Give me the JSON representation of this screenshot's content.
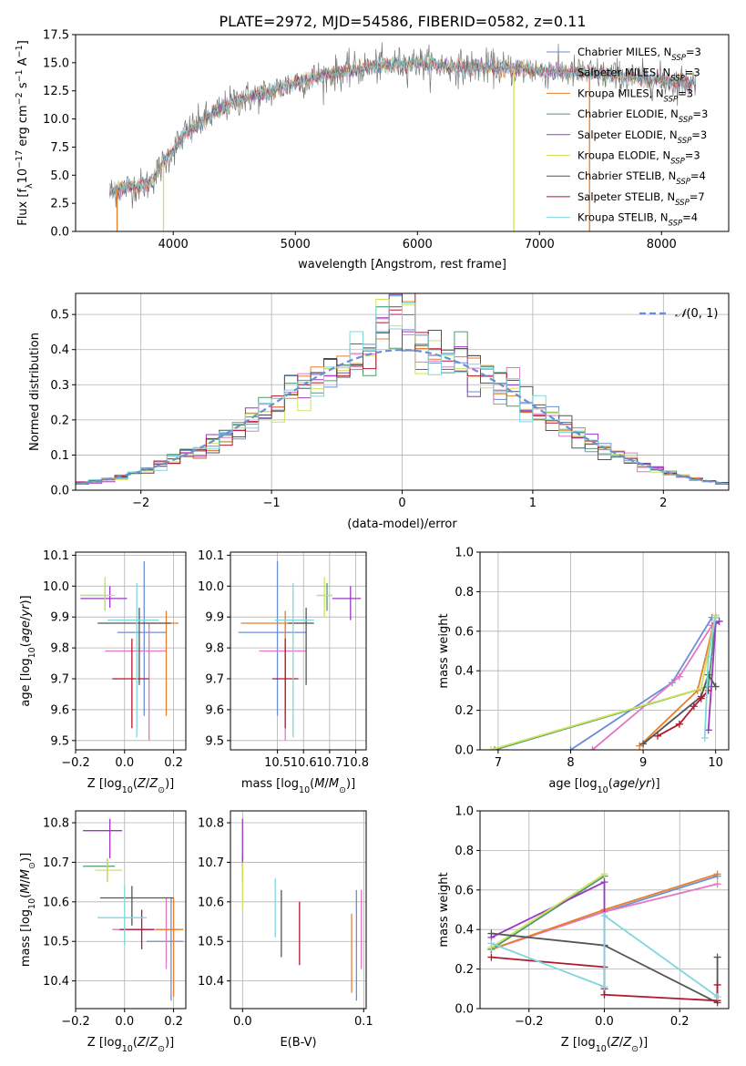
{
  "figure": {
    "title": "PLATE=2972, MJD=54586, FIBERID=0582, z=0.11"
  },
  "models": [
    {
      "name": "Chabrier MILES, N_SSP=3",
      "color": "#6a8fd6"
    },
    {
      "name": "Salpeter MILES, N_SSP=3",
      "color": "#e377c2"
    },
    {
      "name": "Kroupa MILES, N_SSP=3",
      "color": "#e87e2a"
    },
    {
      "name": "Chabrier ELODIE, N_SSP=3",
      "color": "#4e9a6f"
    },
    {
      "name": "Salpeter ELODIE, N_SSP=3",
      "color": "#9b37c4"
    },
    {
      "name": "Kroupa ELODIE, N_SSP=3",
      "color": "#cfe35a"
    },
    {
      "name": "Chabrier STELIB, N_SSP=4",
      "color": "#555555"
    },
    {
      "name": "Salpeter STELIB, N_SSP=7",
      "color": "#b2182b"
    },
    {
      "name": "Kroupa STELIB, N_SSP=4",
      "color": "#7fd7dd"
    }
  ],
  "chart_data": [
    {
      "id": "spectrum",
      "type": "line",
      "xlabel": "wavelength [Angstrom, rest frame]",
      "ylabel": "Flux [f_λ 10^-17 erg cm^-2 s^-1 A^-1]",
      "xlim": [
        3200,
        8550
      ],
      "ylim": [
        0,
        17.5
      ],
      "xticks": [
        4000,
        5000,
        6000,
        7000,
        8000
      ],
      "yticks": [
        0.0,
        2.5,
        5.0,
        7.5,
        10.0,
        12.5,
        15.0,
        17.5
      ],
      "grid": false,
      "legend": "upper right",
      "continuum_knots": {
        "wavelength": [
          3480,
          3600,
          3800,
          3950,
          4100,
          4300,
          4500,
          4800,
          5000,
          5300,
          5600,
          6000,
          6300,
          6600,
          7000,
          7500,
          8000,
          8280
        ],
        "flux": [
          3.5,
          3.9,
          4.2,
          6.5,
          8.8,
          10.2,
          11.6,
          12.4,
          13.3,
          14.0,
          14.6,
          15.0,
          14.6,
          14.6,
          14.3,
          14.0,
          13.4,
          13.2
        ]
      },
      "spikes_down": [
        {
          "wavelength": 3540,
          "color": "#e87e2a"
        },
        {
          "wavelength": 3920,
          "color": "#cfe35a"
        },
        {
          "wavelength": 6790,
          "color": "#cfe35a"
        },
        {
          "wavelength": 7410,
          "color": "#e87e2a"
        }
      ]
    },
    {
      "id": "residuals",
      "type": "histogram",
      "xlabel": "(data-model)/error",
      "ylabel": "Normed distribution",
      "xlim": [
        -2.5,
        2.5
      ],
      "ylim": [
        0,
        0.56
      ],
      "xticks": [
        -2,
        -1,
        0,
        1,
        2
      ],
      "yticks": [
        0.0,
        0.1,
        0.2,
        0.3,
        0.4,
        0.5
      ],
      "grid": true,
      "legend": "upper right",
      "reference_curve": "N(0,1)",
      "bin_width": 0.1
    },
    {
      "id": "age-vs-Z",
      "type": "scatter",
      "xlabel": "Z [log10(Z/Z_sun)]",
      "ylabel": "age [log10(age/yr)]",
      "xlim": [
        -0.2,
        0.25
      ],
      "ylim": [
        9.47,
        10.11
      ],
      "xticks": [
        -0.2,
        0.0,
        0.2
      ],
      "yticks": [
        9.5,
        9.6,
        9.7,
        9.8,
        9.9,
        10.0,
        10.1
      ],
      "grid": true,
      "points": [
        {
          "model": 0,
          "x": 0.08,
          "y": 9.85,
          "xerr": [
            0.11,
            0.09
          ],
          "yerr": [
            0.27,
            0.23
          ]
        },
        {
          "model": 1,
          "x": 0.1,
          "y": 9.79,
          "xerr": [
            0.18,
            0.07
          ],
          "yerr": [
            0.29,
            0.09
          ]
        },
        {
          "model": 2,
          "x": 0.17,
          "y": 9.88,
          "xerr": [
            0.1,
            0.05
          ],
          "yerr": [
            0.3,
            0.04
          ]
        },
        {
          "model": 3,
          "x": -0.08,
          "y": 9.97,
          "xerr": [
            0.1,
            0.03
          ],
          "yerr": [
            0.05,
            0.04
          ]
        },
        {
          "model": 4,
          "x": -0.06,
          "y": 9.96,
          "xerr": [
            0.12,
            0.07
          ],
          "yerr": [
            0.03,
            0.04
          ]
        },
        {
          "model": 5,
          "x": -0.08,
          "y": 9.97,
          "xerr": [
            0.1,
            0.04
          ],
          "yerr": [
            0.05,
            0.06
          ]
        },
        {
          "model": 6,
          "x": 0.06,
          "y": 9.88,
          "xerr": [
            0.17,
            0.13
          ],
          "yerr": [
            0.2,
            0.05
          ]
        },
        {
          "model": 7,
          "x": 0.03,
          "y": 9.7,
          "xerr": [
            0.08,
            0.07
          ],
          "yerr": [
            0.16,
            0.13
          ]
        },
        {
          "model": 8,
          "x": 0.05,
          "y": 9.89,
          "xerr": [
            0.12,
            0.09
          ],
          "yerr": [
            0.38,
            0.12
          ]
        }
      ]
    },
    {
      "id": "age-vs-mass",
      "type": "scatter",
      "xlabel": "mass [log10(M/M_sun)]",
      "ylabel": "",
      "xlim": [
        10.32,
        10.84
      ],
      "ylim": [
        9.47,
        10.11
      ],
      "xticks": [
        10.5,
        10.6,
        10.7,
        10.8
      ],
      "yticks": [
        9.5,
        9.6,
        9.7,
        9.8,
        9.9,
        10.0,
        10.1
      ],
      "grid": true,
      "points": [
        {
          "model": 0,
          "x": 10.5,
          "y": 9.85,
          "xerr": [
            0.15,
            0.11
          ],
          "yerr": [
            0.27,
            0.23
          ]
        },
        {
          "model": 1,
          "x": 10.53,
          "y": 9.79,
          "xerr": [
            0.1,
            0.08
          ],
          "yerr": [
            0.29,
            0.09
          ]
        },
        {
          "model": 2,
          "x": 10.53,
          "y": 9.88,
          "xerr": [
            0.17,
            0.08
          ],
          "yerr": [
            0.3,
            0.04
          ]
        },
        {
          "model": 3,
          "x": 10.69,
          "y": 9.97,
          "xerr": [
            0.04,
            0.02
          ],
          "yerr": [
            0.05,
            0.04
          ]
        },
        {
          "model": 4,
          "x": 10.78,
          "y": 9.96,
          "xerr": [
            0.07,
            0.04
          ],
          "yerr": [
            0.07,
            0.04
          ]
        },
        {
          "model": 5,
          "x": 10.68,
          "y": 9.97,
          "xerr": [
            0.03,
            0.03
          ],
          "yerr": [
            0.07,
            0.06
          ]
        },
        {
          "model": 6,
          "x": 10.61,
          "y": 9.88,
          "xerr": [
            0.07,
            0.03
          ],
          "yerr": [
            0.2,
            0.05
          ]
        },
        {
          "model": 7,
          "x": 10.53,
          "y": 9.7,
          "xerr": [
            0.05,
            0.05
          ],
          "yerr": [
            0.16,
            0.13
          ]
        },
        {
          "model": 8,
          "x": 10.56,
          "y": 9.89,
          "xerr": [
            0.07,
            0.08
          ],
          "yerr": [
            0.38,
            0.12
          ]
        }
      ]
    },
    {
      "id": "weight-vs-age",
      "type": "line",
      "xlabel": "age [log10(age/yr)]",
      "ylabel": "mass weight",
      "xlim": [
        6.75,
        10.18
      ],
      "ylim": [
        0,
        1.0
      ],
      "xticks": [
        7,
        8,
        9,
        10
      ],
      "yticks": [
        0.0,
        0.2,
        0.4,
        0.6,
        0.8,
        1.0
      ],
      "grid": true,
      "series": [
        {
          "model": 0,
          "x": [
            8.0,
            9.4,
            9.95
          ],
          "y": [
            0.0,
            0.34,
            0.67
          ]
        },
        {
          "model": 1,
          "x": [
            8.3,
            9.5,
            9.95
          ],
          "y": [
            0.0,
            0.37,
            0.63
          ]
        },
        {
          "model": 2,
          "x": [
            8.95,
            9.75,
            10.0
          ],
          "y": [
            0.02,
            0.3,
            0.68
          ]
        },
        {
          "model": 3,
          "x": [
            6.95,
            9.9,
            10.0
          ],
          "y": [
            0.0,
            0.32,
            0.67
          ]
        },
        {
          "model": 4,
          "x": [
            9.9,
            10.0,
            10.05
          ],
          "y": [
            0.1,
            0.64,
            0.65
          ]
        },
        {
          "model": 5,
          "x": [
            6.9,
            9.8,
            10.0
          ],
          "y": [
            0.0,
            0.31,
            0.68
          ]
        },
        {
          "model": 6,
          "x": [
            9.0,
            9.8,
            9.9,
            10.0
          ],
          "y": [
            0.03,
            0.27,
            0.38,
            0.32
          ]
        },
        {
          "model": 7,
          "x": [
            9.2,
            9.5,
            9.7,
            9.8,
            9.9
          ],
          "y": [
            0.07,
            0.13,
            0.22,
            0.26,
            0.3
          ]
        },
        {
          "model": 8,
          "x": [
            9.85,
            9.9,
            10.0
          ],
          "y": [
            0.06,
            0.47,
            0.67
          ]
        }
      ]
    },
    {
      "id": "mass-vs-Z",
      "type": "scatter",
      "xlabel": "Z [log10(Z/Z_sun)]",
      "ylabel": "mass [log10(M/M_sun)]",
      "xlim": [
        -0.2,
        0.25
      ],
      "ylim": [
        10.33,
        10.83
      ],
      "xticks": [
        -0.2,
        0.0,
        0.2
      ],
      "yticks": [
        10.4,
        10.5,
        10.6,
        10.7,
        10.8
      ],
      "grid": true,
      "points": [
        {
          "model": 0,
          "x": 0.19,
          "y": 10.5,
          "xerr": [
            0.1,
            0.05
          ],
          "yerr": [
            0.15,
            0.11
          ]
        },
        {
          "model": 1,
          "x": 0.17,
          "y": 10.53,
          "xerr": [
            0.22,
            0.05
          ],
          "yerr": [
            0.1,
            0.08
          ]
        },
        {
          "model": 2,
          "x": 0.2,
          "y": 10.53,
          "xerr": [
            0.07,
            0.04
          ],
          "yerr": [
            0.17,
            0.08
          ]
        },
        {
          "model": 3,
          "x": -0.07,
          "y": 10.69,
          "xerr": [
            0.1,
            0.03
          ],
          "yerr": [
            0.04,
            0.02
          ]
        },
        {
          "model": 4,
          "x": -0.06,
          "y": 10.78,
          "xerr": [
            0.11,
            0.05
          ],
          "yerr": [
            0.07,
            0.03
          ]
        },
        {
          "model": 5,
          "x": -0.07,
          "y": 10.68,
          "xerr": [
            0.05,
            0.06
          ],
          "yerr": [
            0.03,
            0.03
          ]
        },
        {
          "model": 6,
          "x": 0.03,
          "y": 10.61,
          "xerr": [
            0.13,
            0.17
          ],
          "yerr": [
            0.07,
            0.03
          ]
        },
        {
          "model": 7,
          "x": 0.07,
          "y": 10.53,
          "xerr": [
            0.09,
            0.05
          ],
          "yerr": [
            0.05,
            0.05
          ]
        },
        {
          "model": 8,
          "x": 0.0,
          "y": 10.56,
          "xerr": [
            0.11,
            0.09
          ],
          "yerr": [
            0.07,
            0.08
          ]
        }
      ]
    },
    {
      "id": "mass-vs-EBV",
      "type": "scatter",
      "xlabel": "E(B-V)",
      "ylabel": "",
      "xlim": [
        -0.01,
        0.102
      ],
      "ylim": [
        10.33,
        10.83
      ],
      "xticks": [
        0.0,
        0.1
      ],
      "yticks": [
        10.4,
        10.5,
        10.6,
        10.7,
        10.8
      ],
      "grid": true,
      "points": [
        {
          "model": 0,
          "x": 0.094,
          "y": 10.5,
          "xerr": [
            0,
            0
          ],
          "yerr": [
            0.15,
            0.13
          ]
        },
        {
          "model": 1,
          "x": 0.098,
          "y": 10.53,
          "xerr": [
            0,
            0
          ],
          "yerr": [
            0.1,
            0.1
          ]
        },
        {
          "model": 2,
          "x": 0.09,
          "y": 10.47,
          "xerr": [
            0,
            0
          ],
          "yerr": [
            0.1,
            0.1
          ]
        },
        {
          "model": 3,
          "x": 0.0,
          "y": 10.69,
          "xerr": [
            0,
            0
          ],
          "yerr": [
            0.04,
            0.03
          ]
        },
        {
          "model": 4,
          "x": 0.0,
          "y": 10.75,
          "xerr": [
            0,
            0
          ],
          "yerr": [
            0.06,
            0.06
          ]
        },
        {
          "model": 5,
          "x": 0.0,
          "y": 10.64,
          "xerr": [
            0,
            0
          ],
          "yerr": [
            0.06,
            0.06
          ]
        },
        {
          "model": 6,
          "x": 0.032,
          "y": 10.57,
          "xerr": [
            0,
            0
          ],
          "yerr": [
            0.11,
            0.06
          ]
        },
        {
          "model": 7,
          "x": 0.047,
          "y": 10.53,
          "xerr": [
            0,
            0
          ],
          "yerr": [
            0.09,
            0.07
          ]
        },
        {
          "model": 8,
          "x": 0.027,
          "y": 10.58,
          "xerr": [
            0,
            0
          ],
          "yerr": [
            0.07,
            0.08
          ]
        }
      ]
    },
    {
      "id": "weight-vs-Z",
      "type": "line",
      "xlabel": "Z [log10(Z/Z_sun)]",
      "ylabel": "mass weight",
      "xlim": [
        -0.33,
        0.33
      ],
      "ylim": [
        0,
        1.0
      ],
      "xticks": [
        -0.2,
        0.0,
        0.2
      ],
      "yticks": [
        0.0,
        0.2,
        0.4,
        0.6,
        0.8,
        1.0
      ],
      "grid": true,
      "series": [
        {
          "model": 0,
          "x": [
            -0.3,
            0.0,
            0.3
          ],
          "y": [
            0.3,
            0.49,
            0.67
          ]
        },
        {
          "model": 1,
          "x": [
            -0.3,
            0.0,
            0.3
          ],
          "y": [
            0.3,
            0.49,
            0.63
          ]
        },
        {
          "model": 2,
          "x": [
            -0.3,
            0.0,
            0.3
          ],
          "y": [
            0.3,
            0.5,
            0.68
          ]
        },
        {
          "model": 3,
          "x": [
            -0.3,
            0.0
          ],
          "y": [
            0.3,
            0.67
          ]
        },
        {
          "model": 4,
          "x": [
            -0.3,
            0.0,
            0.0
          ],
          "y": [
            0.36,
            0.64,
            0.1
          ]
        },
        {
          "model": 5,
          "x": [
            -0.3,
            0.0
          ],
          "y": [
            0.31,
            0.68
          ]
        },
        {
          "model": 6,
          "x": [
            -0.3,
            0.0,
            0.3,
            0.3
          ],
          "y": [
            0.38,
            0.32,
            0.03,
            0.26
          ]
        },
        {
          "model": 7,
          "x": [
            -0.3,
            0.0,
            0.0,
            0.3,
            0.3
          ],
          "y": [
            0.26,
            0.21,
            0.07,
            0.04,
            0.12
          ]
        },
        {
          "model": 8,
          "x": [
            -0.3,
            0.0,
            0.0,
            0.3
          ],
          "y": [
            0.33,
            0.11,
            0.47,
            0.06
          ]
        }
      ]
    }
  ]
}
